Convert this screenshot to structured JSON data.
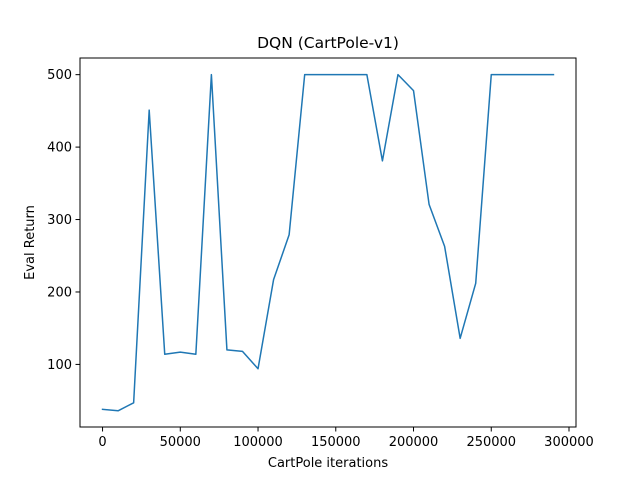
{
  "chart_data": {
    "type": "line",
    "title": "DQN (CartPole-v1)",
    "xlabel": "CartPole iterations",
    "ylabel": "Eval Return",
    "xlim": [
      -14500,
      304500
    ],
    "ylim": [
      13.6,
      523
    ],
    "xticks": [
      0,
      50000,
      100000,
      150000,
      200000,
      250000,
      300000
    ],
    "xtick_labels": [
      "0",
      "50000",
      "100000",
      "150000",
      "200000",
      "250000",
      "300000"
    ],
    "yticks": [
      100,
      200,
      300,
      400,
      500
    ],
    "ytick_labels": [
      "100",
      "200",
      "300",
      "400",
      "500"
    ],
    "grid": false,
    "legend": null,
    "series": [
      {
        "color": "#1f77b4",
        "x": [
          0,
          10000,
          20000,
          30000,
          40000,
          50000,
          60000,
          70000,
          80000,
          90000,
          100000,
          110000,
          120000,
          130000,
          140000,
          150000,
          160000,
          170000,
          180000,
          190000,
          200000,
          210000,
          220000,
          230000,
          240000,
          250000,
          260000,
          270000,
          280000,
          290000
        ],
        "y": [
          38,
          36,
          47,
          451,
          114,
          117,
          114,
          500,
          120,
          118,
          94,
          217,
          279,
          500,
          500,
          500,
          500,
          500,
          381,
          500,
          478,
          321,
          263,
          136,
          212,
          500,
          500,
          500,
          500,
          500
        ]
      }
    ]
  }
}
